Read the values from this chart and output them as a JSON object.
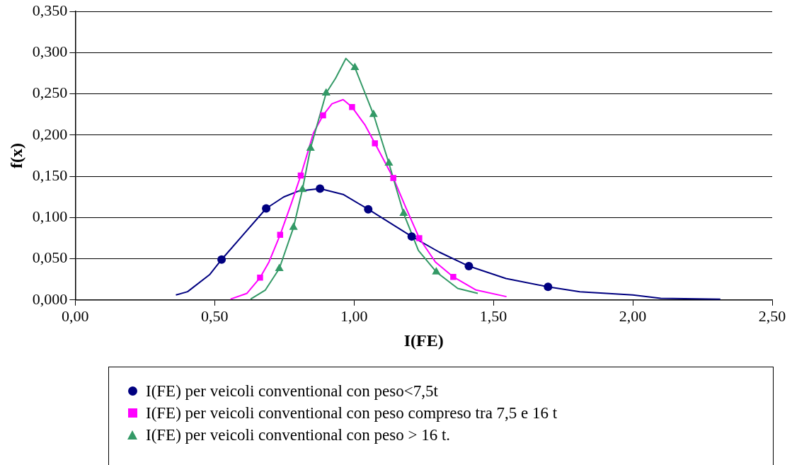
{
  "chart_data": {
    "type": "line",
    "xlabel": "I(FE)",
    "ylabel": "f(x)",
    "xlim": [
      0,
      2.5
    ],
    "xticks": [
      {
        "value": 0,
        "label": "0,00"
      },
      {
        "value": 0.5,
        "label": "0,50"
      },
      {
        "value": 1,
        "label": "1,00"
      },
      {
        "value": 1.5,
        "label": "1,50"
      },
      {
        "value": 2,
        "label": "2,00"
      },
      {
        "value": 2.5,
        "label": "2,50"
      }
    ],
    "ylim": [
      0,
      0.35
    ],
    "yticks": [
      {
        "value": 0,
        "label": "0,000"
      },
      {
        "value": 0.05,
        "label": "0,050"
      },
      {
        "value": 0.1,
        "label": "0,100"
      },
      {
        "value": 0.15,
        "label": "0,150"
      },
      {
        "value": 0.2,
        "label": "0,200"
      },
      {
        "value": 0.25,
        "label": "0,250"
      },
      {
        "value": 0.3,
        "label": "0,300"
      },
      {
        "value": 0.35,
        "label": "0,350"
      }
    ],
    "grid": "y",
    "legend": "bottom",
    "line_style": "solid",
    "series": [
      {
        "type": "line",
        "marker": "none",
        "color": "#000080",
        "x": [
          0.361,
          0.403,
          0.483,
          0.525,
          0.602,
          0.685,
          0.748,
          0.8,
          0.878,
          0.961,
          1.051,
          1.207,
          1.306,
          1.412,
          1.545,
          1.696,
          1.81,
          2.0,
          2.1,
          2.314
        ],
        "values": [
          0.006,
          0.01,
          0.031,
          0.049,
          0.079,
          0.111,
          0.125,
          0.132,
          0.135,
          0.128,
          0.11,
          0.077,
          0.058,
          0.041,
          0.026,
          0.016,
          0.01,
          0.006,
          0.002,
          0.001
        ]
      },
      {
        "type": "line",
        "marker": "none",
        "color": "#ff00ff",
        "x": [
          0.557,
          0.616,
          0.663,
          0.695,
          0.735,
          0.775,
          0.809,
          0.855,
          0.889,
          0.921,
          0.961,
          0.993,
          1.04,
          1.075,
          1.141,
          1.186,
          1.234,
          1.292,
          1.356,
          1.438,
          1.547
        ],
        "values": [
          0.001,
          0.008,
          0.027,
          0.046,
          0.079,
          0.117,
          0.151,
          0.203,
          0.224,
          0.238,
          0.243,
          0.234,
          0.212,
          0.19,
          0.148,
          0.112,
          0.075,
          0.046,
          0.028,
          0.012,
          0.004
        ]
      },
      {
        "type": "line",
        "marker": "none",
        "color": "#339966",
        "x": [
          0.629,
          0.682,
          0.732,
          0.783,
          0.815,
          0.844,
          0.9,
          0.934,
          0.971,
          1.003,
          1.07,
          1.125,
          1.178,
          1.231,
          1.295,
          1.372,
          1.444
        ],
        "values": [
          0.001,
          0.012,
          0.038,
          0.088,
          0.134,
          0.184,
          0.251,
          0.269,
          0.293,
          0.282,
          0.225,
          0.166,
          0.105,
          0.06,
          0.034,
          0.014,
          0.008
        ]
      },
      {
        "type": "scatter",
        "marker": "circle",
        "name": "I(FE) per veicoli conventional con peso<7,5t",
        "color": "#000080",
        "x": [
          0.525,
          0.685,
          0.878,
          1.051,
          1.207,
          1.412,
          1.696
        ],
        "values": [
          0.049,
          0.111,
          0.135,
          0.11,
          0.077,
          0.041,
          0.016
        ]
      },
      {
        "type": "scatter",
        "marker": "square",
        "name": "I(FE) per veicoli conventional con peso compreso tra 7,5 e 16 t",
        "color": "#ff00ff",
        "x": [
          0.663,
          0.735,
          0.809,
          0.889,
          0.993,
          1.075,
          1.141,
          1.234,
          1.356
        ],
        "values": [
          0.027,
          0.079,
          0.151,
          0.224,
          0.234,
          0.19,
          0.148,
          0.075,
          0.028
        ]
      },
      {
        "type": "scatter",
        "marker": "triangle",
        "name": "I(FE) per veicoli conventional con peso > 16 t.",
        "color": "#339966",
        "x": [
          0.732,
          0.783,
          0.815,
          0.844,
          0.9,
          1.003,
          1.07,
          1.125,
          1.178,
          1.295
        ],
        "values": [
          0.038,
          0.088,
          0.134,
          0.184,
          0.251,
          0.282,
          0.225,
          0.166,
          0.105,
          0.034
        ]
      }
    ]
  }
}
